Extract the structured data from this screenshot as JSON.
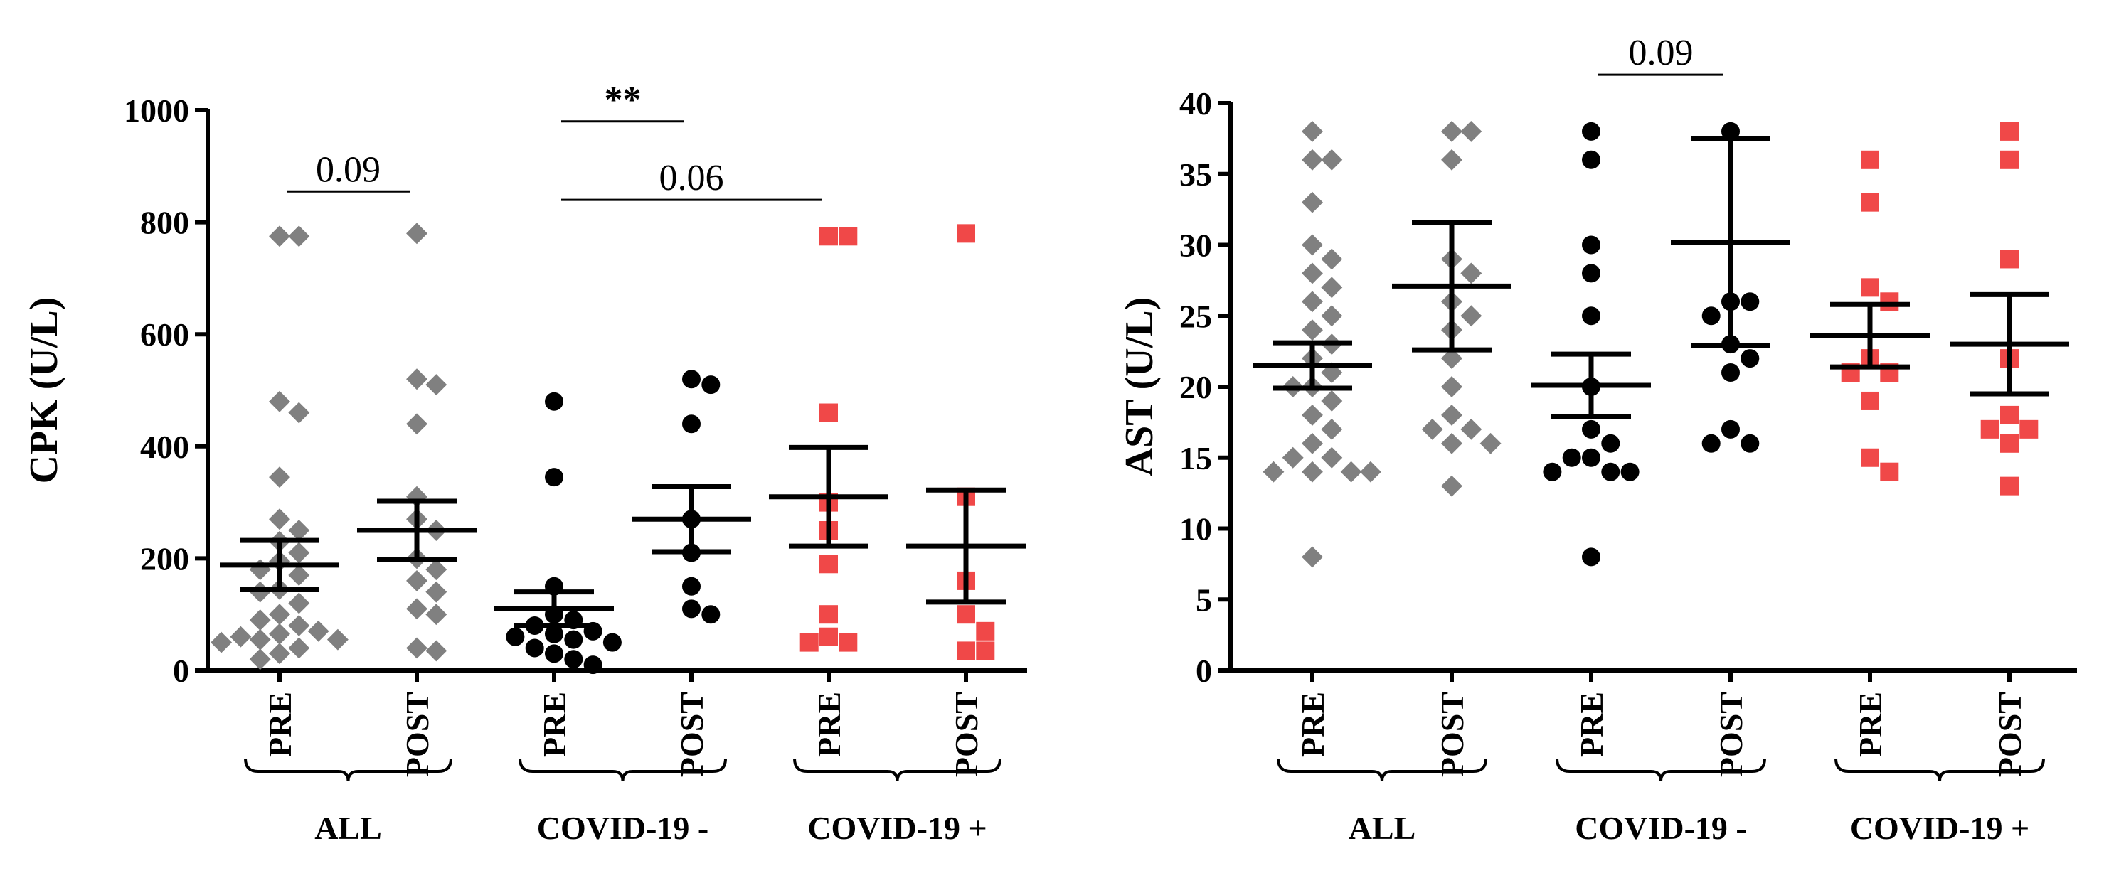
{
  "chart_data": [
    {
      "type": "dotplot",
      "ylabel": "CPK (U/L)",
      "ylim": [
        0,
        1000
      ],
      "yticks": [
        0,
        200,
        400,
        600,
        800,
        1000
      ],
      "groups": [
        {
          "label": "ALL",
          "color": "#808080",
          "marker": "diamond",
          "categories": [
            "PRE",
            "POST"
          ],
          "columns": [
            {
              "points": [
                775,
                775,
                480,
                460,
                345,
                270,
                250,
                230,
                210,
                195,
                180,
                170,
                145,
                140,
                120,
                100,
                90,
                80,
                70,
                65,
                60,
                55,
                55,
                50,
                40,
                30,
                20
              ],
              "mean": 188,
              "sem": 44
            },
            {
              "points": [
                780,
                520,
                510,
                440,
                310,
                270,
                250,
                200,
                180,
                160,
                140,
                110,
                100,
                40,
                35
              ],
              "mean": 250,
              "sem": 52
            }
          ]
        },
        {
          "label": "COVID-19 -",
          "color": "#000000",
          "marker": "circle",
          "categories": [
            "PRE",
            "POST"
          ],
          "columns": [
            {
              "points": [
                480,
                345,
                150,
                100,
                90,
                80,
                70,
                65,
                60,
                55,
                50,
                40,
                30,
                20,
                10
              ],
              "mean": 110,
              "sem": 30
            },
            {
              "points": [
                520,
                510,
                440,
                270,
                210,
                150,
                110,
                100
              ],
              "mean": 270,
              "sem": 58
            }
          ]
        },
        {
          "label": "COVID-19 +",
          "color": "#f04848",
          "marker": "square",
          "categories": [
            "PRE",
            "POST"
          ],
          "columns": [
            {
              "points": [
                775,
                775,
                460,
                300,
                250,
                190,
                100,
                60,
                50,
                50
              ],
              "mean": 310,
              "sem": 88
            },
            {
              "points": [
                780,
                310,
                160,
                100,
                70,
                35,
                35
              ],
              "mean": 222,
              "sem": 100
            }
          ]
        }
      ],
      "annotations": [
        {
          "label": "0.09",
          "from": [
            0,
            0
          ],
          "to": [
            0,
            1
          ],
          "y": 855
        },
        {
          "label": "**",
          "from": [
            1,
            0
          ],
          "to": [
            1,
            1
          ],
          "y": 980
        },
        {
          "label": "0.06",
          "from": [
            1,
            0
          ],
          "to": [
            2,
            0
          ],
          "y": 840
        }
      ]
    },
    {
      "type": "dotplot",
      "ylabel": "AST (U/L)",
      "ylim": [
        0,
        40
      ],
      "yticks": [
        0,
        5,
        10,
        15,
        20,
        25,
        30,
        35,
        40
      ],
      "groups": [
        {
          "label": "ALL",
          "color": "#808080",
          "marker": "diamond",
          "categories": [
            "PRE",
            "POST"
          ],
          "columns": [
            {
              "points": [
                38,
                36,
                36,
                33,
                30,
                29,
                28,
                27,
                26,
                25,
                24,
                23,
                22,
                21,
                20,
                20,
                19,
                18,
                17,
                16,
                15,
                15,
                14,
                14,
                14,
                14,
                8
              ],
              "mean": 21.5,
              "sem": 1.6
            },
            {
              "points": [
                38,
                38,
                36,
                29,
                28,
                26,
                25,
                24,
                22,
                20,
                18,
                17,
                17,
                16,
                16,
                13
              ],
              "mean": 27.1,
              "sem": 4.5
            }
          ]
        },
        {
          "label": "COVID-19 -",
          "color": "#000000",
          "marker": "circle",
          "categories": [
            "PRE",
            "POST"
          ],
          "columns": [
            {
              "points": [
                38,
                36,
                30,
                28,
                25,
                20,
                17,
                16,
                15,
                15,
                14,
                14,
                14,
                8
              ],
              "mean": 20.1,
              "sem": 2.2
            },
            {
              "points": [
                38,
                26,
                26,
                25,
                23,
                22,
                21,
                17,
                16,
                16
              ],
              "mean": 30.2,
              "sem": 7.3
            }
          ]
        },
        {
          "label": "COVID-19 +",
          "color": "#f04848",
          "marker": "square",
          "categories": [
            "PRE",
            "POST"
          ],
          "columns": [
            {
              "points": [
                36,
                33,
                27,
                26,
                22,
                21,
                21,
                19,
                15,
                14
              ],
              "mean": 23.6,
              "sem": 2.2
            },
            {
              "points": [
                38,
                36,
                29,
                22,
                18,
                17,
                17,
                16,
                13
              ],
              "mean": 23,
              "sem": 3.5
            }
          ]
        }
      ],
      "annotations": [
        {
          "label": "0.09",
          "from": [
            1,
            0
          ],
          "to": [
            1,
            1
          ],
          "y": 42
        }
      ]
    }
  ]
}
